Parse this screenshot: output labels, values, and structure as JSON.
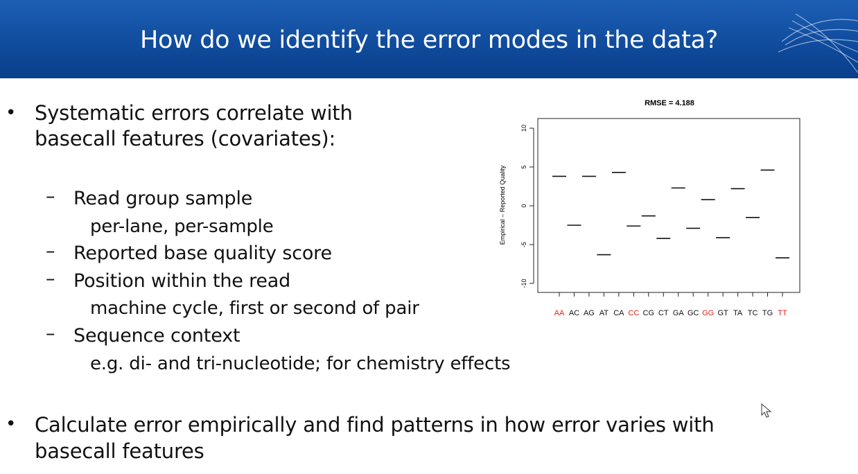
{
  "slide": {
    "title": "How do we identify the error modes in the data?",
    "bullets": [
      {
        "lines": [
          "Systematic errors correlate with",
          "basecall features (covariates):"
        ]
      },
      {
        "lines": [
          "Calculate error empirically and find patterns in how error varies with",
          "basecall features"
        ]
      }
    ],
    "sub_items": [
      {
        "label": "Read group sample",
        "detail": "per-lane, per-sample"
      },
      {
        "label": "Reported base quality score",
        "detail": ""
      },
      {
        "label": "Position within the read",
        "detail": "machine cycle, first or second of pair"
      },
      {
        "label": "Sequence context",
        "detail": "e.g. di- and tri-nucleotide; for chemistry effects"
      }
    ]
  },
  "chart_data": {
    "type": "scatter",
    "title": "RMSE = 4.188",
    "ylabel": "Empirical – Reported Quality",
    "ylim": [
      -10,
      10
    ],
    "yticks": [
      "-10",
      "-5",
      "0",
      "5",
      "10"
    ],
    "categories": [
      "AA",
      "AC",
      "AG",
      "AT",
      "CA",
      "CC",
      "CG",
      "CT",
      "GA",
      "GC",
      "GG",
      "GT",
      "TA",
      "TC",
      "TG",
      "TT"
    ],
    "highlight_categories": [
      "AA",
      "CC",
      "GG",
      "TT"
    ],
    "highlight_color": "#e0201b",
    "values": [
      3.8,
      -2.5,
      3.8,
      -6.3,
      4.3,
      -2.6,
      -1.3,
      -4.2,
      2.3,
      -2.9,
      0.8,
      -4.1,
      2.2,
      -1.5,
      4.6,
      -6.7
    ],
    "grid": false
  }
}
